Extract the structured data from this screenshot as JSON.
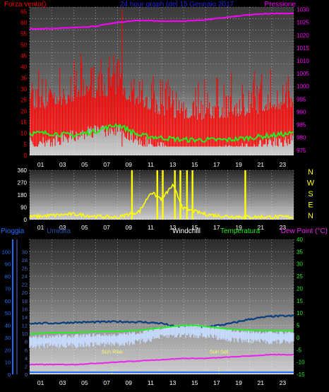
{
  "colors": {
    "background": "#000000",
    "wind": "#ff0000",
    "wind_avg": "#22ee22",
    "pressure": "#ff00ff",
    "direction": "#ffff00",
    "rain": "#1e6fff",
    "humidity": "#0a3f7f",
    "windchill": "#c8dcff",
    "temperature": "#22ee22",
    "dewpoint": "#ee22ee",
    "title": "#2222dd",
    "grid": "#ffffff"
  },
  "header": {
    "wind_label": "Forza vento()",
    "title": "24 hour graph (del  15 Gennaio 2017",
    "pressure_label": "Pressione"
  },
  "x_ticks": [
    "01",
    "03",
    "05",
    "07",
    "09",
    "11",
    "13",
    "15",
    "17",
    "19",
    "21",
    "23"
  ],
  "compass": [
    "N",
    "W",
    "S",
    "E",
    "N"
  ],
  "legend": {
    "rain": "Pioggia",
    "humidity": "Umidita",
    "windchill": "Windchill",
    "temperature": "Temperatura",
    "dewpoint": "Dew Point (°C)"
  },
  "annotations": {
    "sunrise": "Sun Rise",
    "sunset": "Sun Set"
  },
  "chart_data": [
    {
      "type": "line",
      "title": "24 hour graph (del  15 Gennaio 2017",
      "x_ticks": [
        "01",
        "03",
        "05",
        "07",
        "09",
        "11",
        "13",
        "15",
        "17",
        "19",
        "21",
        "23"
      ],
      "y_left_ticks": [
        "0",
        "5",
        "10",
        "15",
        "20",
        "25",
        "30",
        "35",
        "40",
        "45",
        "50",
        "55",
        "60",
        "65"
      ],
      "y_right_ticks": [
        "975",
        "980",
        "985",
        "990",
        "995",
        "1000",
        "1005",
        "1010",
        "1015",
        "1020",
        "1025",
        "1030"
      ],
      "ylim_left": [
        0,
        67
      ],
      "ylim_right": [
        973,
        1031
      ],
      "series": [
        {
          "name": "Forza vento()",
          "axis": "left",
          "x": [
            0,
            2,
            4,
            6,
            8,
            10,
            12,
            14,
            16,
            18,
            20,
            22,
            24
          ],
          "values": [
            20,
            21,
            24,
            26,
            27,
            22,
            18,
            16,
            16,
            17,
            18,
            20,
            22
          ]
        },
        {
          "name": "avg",
          "axis": "left",
          "x": [
            0,
            2,
            4,
            6,
            8,
            10,
            12,
            14,
            16,
            18,
            20,
            22,
            24
          ],
          "values": [
            10,
            10,
            9,
            11,
            14,
            9,
            8,
            7,
            7,
            7,
            8,
            9,
            10
          ]
        },
        {
          "name": "Pressione",
          "axis": "right",
          "x": [
            0,
            2,
            4,
            6,
            8,
            10,
            12,
            14,
            16,
            18,
            20,
            22,
            24
          ],
          "values": [
            1022.5,
            1022.5,
            1023,
            1023.5,
            1025,
            1025.8,
            1025.5,
            1025.5,
            1026,
            1027,
            1028,
            1028.5,
            1028.5
          ]
        }
      ]
    },
    {
      "type": "line",
      "x_ticks": [
        "01",
        "03",
        "05",
        "07",
        "09",
        "11",
        "13",
        "15",
        "17",
        "19",
        "21",
        "23"
      ],
      "y_left_ticks": [
        "0",
        "90",
        "180",
        "270",
        "360"
      ],
      "ylim": [
        0,
        360
      ],
      "series": [
        {
          "name": "direction",
          "x": [
            0,
            2,
            4,
            6,
            8,
            9,
            10,
            11,
            12,
            13,
            14,
            15,
            16,
            17,
            18,
            20,
            22,
            24
          ],
          "values": [
            20,
            30,
            40,
            25,
            15,
            40,
            60,
            200,
            150,
            250,
            80,
            60,
            40,
            30,
            25,
            20,
            20,
            20
          ]
        }
      ]
    },
    {
      "type": "line",
      "x_ticks": [
        "01",
        "03",
        "05",
        "07",
        "09",
        "11",
        "13",
        "15",
        "17",
        "19",
        "21",
        "23"
      ],
      "y_left_ticks": [
        "0",
        "10",
        "20",
        "30",
        "40",
        "50",
        "60",
        "70",
        "80",
        "90",
        "100"
      ],
      "y_mid_ticks": [
        "0",
        "2",
        "4",
        "6",
        "8",
        "10",
        "12",
        "14",
        "16",
        "18",
        "20",
        "22",
        "24",
        "26",
        "28",
        "30"
      ],
      "y_right_ticks": [
        "-15",
        "-10",
        "-5",
        "0",
        "5",
        "10",
        "15",
        "20",
        "25",
        "30",
        "35",
        "40"
      ],
      "ylim_right": [
        -15,
        40
      ],
      "series": [
        {
          "name": "Pioggia",
          "axis": "left",
          "x": [
            0,
            24
          ],
          "values": [
            0,
            0
          ]
        },
        {
          "name": "Umidita",
          "axis": "mid",
          "x": [
            0,
            2,
            4,
            6,
            8,
            10,
            12,
            13,
            14,
            15,
            16,
            18,
            20,
            22,
            24
          ],
          "values": [
            12.5,
            12.5,
            12.7,
            12.8,
            12.9,
            12.8,
            12.5,
            11.8,
            11.5,
            11.2,
            11.6,
            12.3,
            13.5,
            14.2,
            14.3
          ]
        },
        {
          "name": "Windchill",
          "axis": "right",
          "x": [
            0,
            2,
            4,
            6,
            8,
            10,
            11,
            12,
            13,
            14,
            15,
            16,
            17,
            18,
            20,
            22,
            24
          ],
          "values": [
            -1.5,
            -1,
            -1,
            -0.5,
            -0.5,
            0.5,
            1.5,
            2.5,
            3,
            3.2,
            3.2,
            2.8,
            2.5,
            1.5,
            0.8,
            0.5,
            0.5
          ]
        },
        {
          "name": "Temperatura",
          "axis": "right",
          "x": [
            0,
            2,
            4,
            6,
            8,
            10,
            11,
            12,
            13,
            14,
            15,
            16,
            17,
            18,
            20,
            22,
            24
          ],
          "values": [
            1.5,
            2,
            2,
            2.5,
            2.5,
            3,
            3.5,
            4,
            4.5,
            5,
            5,
            4.5,
            4,
            3.5,
            3,
            2.8,
            2.8
          ]
        },
        {
          "name": "Dew Point (°C)",
          "axis": "right",
          "x": [
            0,
            2,
            4,
            6,
            8,
            10,
            12,
            14,
            16,
            18,
            20,
            22,
            24
          ],
          "values": [
            -11,
            -11,
            -11,
            -10.5,
            -10,
            -9.5,
            -9,
            -8.5,
            -8.5,
            -8,
            -7.5,
            -7,
            -7
          ]
        }
      ],
      "annotations": [
        {
          "label": "Sun Rise",
          "x": 7.5
        },
        {
          "label": "Sun Set",
          "x": 17.2
        }
      ]
    }
  ]
}
